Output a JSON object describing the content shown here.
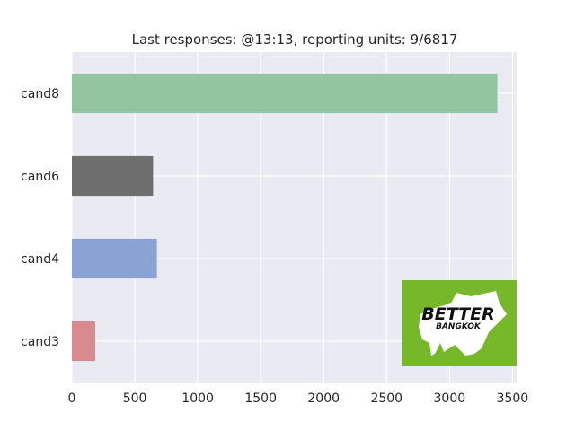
{
  "chart_data": {
    "type": "bar",
    "orientation": "horizontal",
    "title": "Last responses: @13:13, reporting units: 9/6817",
    "xlabel": "",
    "ylabel": "",
    "categories": [
      "cand3",
      "cand4",
      "cand6",
      "cand8"
    ],
    "values": [
      185,
      675,
      645,
      3380
    ],
    "bar_colors": [
      "#d98a8f",
      "#8aa3d4",
      "#6e6e6e",
      "#91c6a1"
    ],
    "xlim": [
      0,
      3540
    ],
    "xticks": [
      0,
      500,
      1000,
      1500,
      2000,
      2500,
      3000,
      3500
    ],
    "grid": true,
    "background": "#eaeaf2",
    "legend": "none"
  },
  "logo": {
    "label": "BETTER BANGKOK",
    "line1": "BETTER",
    "line2": "BANGKOK",
    "background": "#76b82a"
  }
}
